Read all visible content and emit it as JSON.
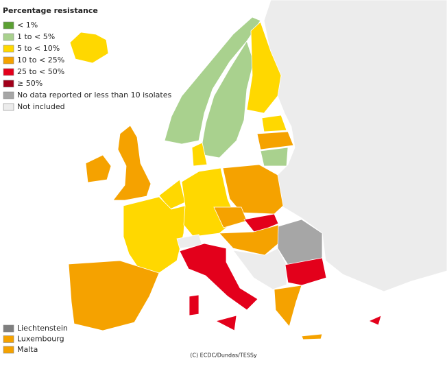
{
  "legend": {
    "title": "Percentage resistance",
    "items": [
      {
        "label": "< 1%",
        "color": "#5ba033"
      },
      {
        "label": "1 to < 5%",
        "color": "#a9d18e"
      },
      {
        "label": "5 to < 10%",
        "color": "#ffd800"
      },
      {
        "label": "10 to < 25%",
        "color": "#f5a200"
      },
      {
        "label": "25 to < 50%",
        "color": "#e3001b"
      },
      {
        "label": "≥ 50%",
        "color": "#a1001a"
      },
      {
        "label": "No data reported or less than 10 isolates",
        "color": "#a6a6a6"
      },
      {
        "label": "Not included",
        "color": "#ececec"
      }
    ]
  },
  "small_countries": [
    {
      "label": "Liechtenstein",
      "color": "#7f7f7f"
    },
    {
      "label": "Luxembourg",
      "color": "#f5a200"
    },
    {
      "label": "Malta",
      "color": "#f5a200"
    }
  ],
  "credit": "(C) ECDC/Dundas/TESSy"
}
